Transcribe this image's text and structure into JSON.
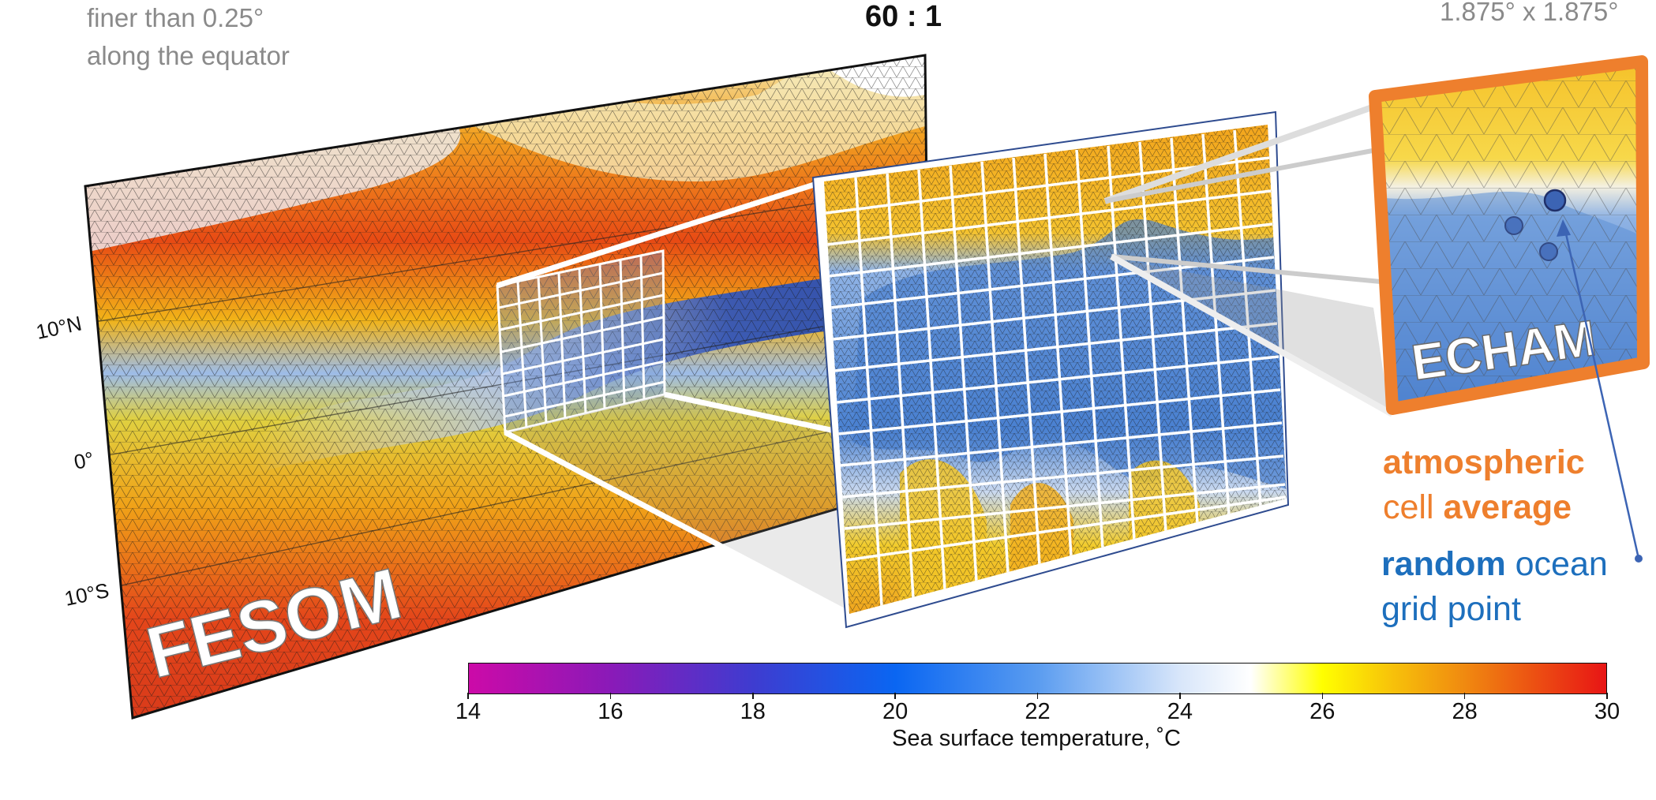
{
  "top_notes": {
    "fesom_resolution_line1": "finer than 0.25°",
    "fesom_resolution_line2": "along the equator",
    "ratio": "60 : 1",
    "echam_resolution": "1.875° x 1.875°"
  },
  "latitude_labels": [
    "10°N",
    "0°",
    "10°S"
  ],
  "panels": {
    "ocean_model": "FESOM",
    "atmosphere_model": "ECHAM"
  },
  "legend": {
    "atm_line1_a": "atmospheric",
    "atm_line2_a": "cell ",
    "atm_line2_b": "average",
    "ocean_line1_a": "random",
    "ocean_line1_b": " ocean",
    "ocean_line2": "grid point"
  },
  "colorbar": {
    "label": "Sea surface temperature, ˚C",
    "ticks": [
      "14",
      "16",
      "18",
      "20",
      "22",
      "24",
      "26",
      "28",
      "30"
    ],
    "min": 14,
    "max": 30,
    "colors": {
      "t14": "#cc0aa8",
      "t16": "#8a1ab8",
      "t18": "#3e3cd0",
      "t20": "#0a66f2",
      "t22": "#5a9cf0",
      "t24": "#d8e6fa",
      "t25": "#ffffff",
      "t26": "#ffff00",
      "t27": "#f7c10a",
      "t28": "#f08a10",
      "t30": "#e81515"
    }
  },
  "accent_colors": {
    "echam_frame": "#ee7f2d",
    "ocean_point": "#3c64b4"
  }
}
